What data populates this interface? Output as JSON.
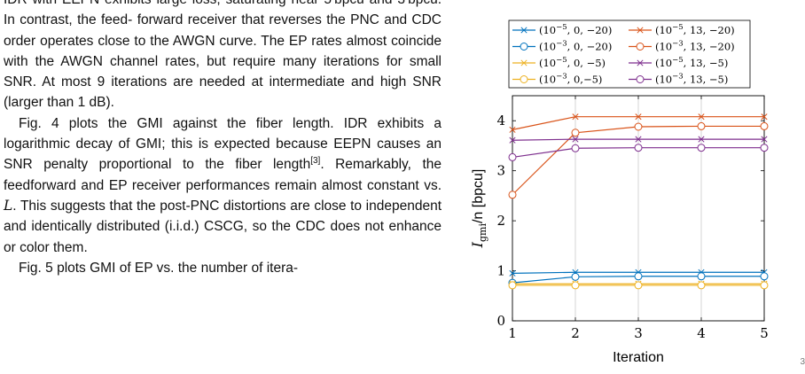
{
  "body_text": {
    "paragraph_1": {
      "l1": "IDR with EEPN exhibits large loss, saturating",
      "l2a": "near 5",
      "unit_a": "bpcu",
      "l2b": "and 3",
      "unit_b": "bpcu",
      "l2c": ". In contrast, the feed-",
      "l3": "forward receiver that reverses the PNC and CDC",
      "l4": "order operates close to the AWGN curve. The",
      "l5": "EP rates almost coincide with the AWGN channel",
      "l6": "rates, but require many iterations for small SNR.",
      "l7": "At most 9 iterations are needed at intermediate",
      "l8": "and high SNR (larger than 1 dB)."
    },
    "paragraph_2": {
      "l1": "Fig. 4 plots the GMI against the fiber length.",
      "l2": "IDR exhibits a logarithmic decay of GMI; this is",
      "l3": "expected because EEPN causes an SNR penalty",
      "l4": "proportional to the fiber length",
      "citation": "[3]",
      "l4b": ". Remarkably,",
      "l5": "the feedforward and EP receiver performances",
      "l6a": "remain almost constant vs.",
      "l6_var": "L",
      "l6b": ". This suggests that",
      "l7": "the post-PNC distortions are close to independent",
      "l8": "and identically distributed (i.i.d.) CSCG, so the",
      "l9": "CDC does not enhance or color them."
    },
    "paragraph_3": {
      "l1": "Fig. 5 plots GMI of EP vs. the number of itera-"
    }
  },
  "chart_data": {
    "type": "line",
    "title": "",
    "xlabel": "Iteration",
    "ylabel_main": "I",
    "ylabel_sub": "gmi",
    "ylabel_rest": "/n [bpcu]",
    "x": [
      1,
      2,
      3,
      4,
      5
    ],
    "xlim": [
      1,
      5
    ],
    "ylim": [
      0,
      4.5
    ],
    "xticks": [
      "1",
      "2",
      "3",
      "4",
      "5"
    ],
    "yticks": [
      "0",
      "1",
      "2",
      "3",
      "4"
    ],
    "grid": "vertical",
    "legend_position": "top",
    "series": [
      {
        "name": "(10^-5, 0, -20)",
        "label_base": "(10",
        "label_exp": "−5",
        "label_rest": ", 0, −20)",
        "color": "#0072bd",
        "marker": "x",
        "values": [
          0.95,
          0.97,
          0.97,
          0.97,
          0.97
        ]
      },
      {
        "name": "(10^-5, 13, -20)",
        "label_base": "(10",
        "label_exp": "−5",
        "label_rest": ", 13, −20)",
        "color": "#d95319",
        "marker": "x",
        "values": [
          3.82,
          4.08,
          4.08,
          4.08,
          4.08
        ]
      },
      {
        "name": "(10^-3, 0, -20)",
        "label_base": "(10",
        "label_exp": "−3",
        "label_rest": ", 0, −20)",
        "color": "#0072bd",
        "marker": "o",
        "values": [
          0.76,
          0.88,
          0.89,
          0.89,
          0.89
        ]
      },
      {
        "name": "(10^-3, 13, -20)",
        "label_base": "(10",
        "label_exp": "−3",
        "label_rest": ", 13, −20)",
        "color": "#d95319",
        "marker": "o",
        "values": [
          2.52,
          3.76,
          3.88,
          3.89,
          3.89
        ]
      },
      {
        "name": "(10^-5, 0, -5)",
        "label_base": "(10",
        "label_exp": "−5",
        "label_rest": ", 0, −5)",
        "color": "#edb120",
        "marker": "x",
        "values": [
          0.74,
          0.74,
          0.74,
          0.74,
          0.74
        ]
      },
      {
        "name": "(10^-5, 13, -5)",
        "label_base": "(10",
        "label_exp": "−5",
        "label_rest": ", 13, −5)",
        "color": "#7e2f8e",
        "marker": "x",
        "values": [
          3.61,
          3.63,
          3.63,
          3.63,
          3.63
        ]
      },
      {
        "name": "(10^-3, 0, -5)",
        "label_base": "(10",
        "label_exp": "−3",
        "label_rest": ", 0,−5)",
        "color": "#edb120",
        "marker": "o",
        "values": [
          0.71,
          0.71,
          0.71,
          0.71,
          0.71
        ]
      },
      {
        "name": "(10^-3, 13, -5)",
        "label_base": "(10",
        "label_exp": "−3",
        "label_rest": ", 13, −5)",
        "color": "#7e2f8e",
        "marker": "o",
        "values": [
          3.27,
          3.45,
          3.46,
          3.46,
          3.46
        ]
      }
    ]
  }
}
